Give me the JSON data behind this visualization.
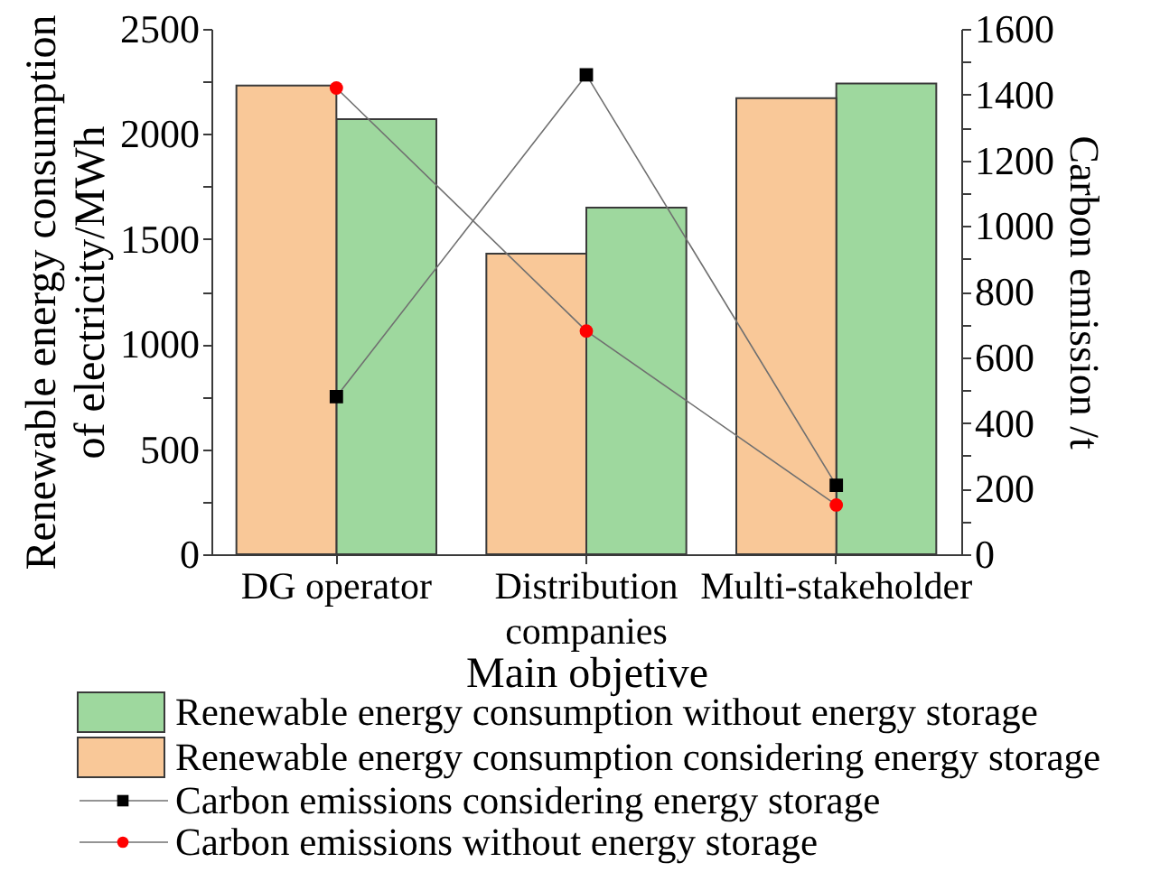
{
  "chart_data": {
    "type": "bar",
    "xlabel": "Main objetive",
    "ylabel": "Renewable energy consumption of electricity/MWh",
    "y2label": "Carbon emission /t",
    "categories": [
      "DG operator",
      "Distribution companies",
      "Multi-stakeholder"
    ],
    "series": [
      {
        "name": "Renewable energy consumption without energy storage",
        "color": "#9ed89e",
        "values": [
          2070,
          1650,
          2240
        ]
      },
      {
        "name": "Renewable energy consumption considering energy storage",
        "color": "#f9c898",
        "values": [
          2230,
          1430,
          2170
        ]
      },
      {
        "name": "Carbon emissions considering energy storage",
        "type": "line",
        "axis": "y2",
        "marker": "square",
        "color": "#000000",
        "values": [
          480,
          1460,
          210
        ]
      },
      {
        "name": "Carbon emissions without energy storage",
        "type": "line",
        "axis": "y2",
        "marker": "circle",
        "color": "#ff0000",
        "values": [
          1420,
          680,
          150
        ]
      }
    ],
    "ylim": [
      0,
      2500
    ],
    "yticks": [
      0,
      {
        "value": 250,
        "label": null
      },
      500,
      {
        "value": 750,
        "label": null
      },
      1000,
      {
        "value": 1250,
        "label": null
      },
      1500,
      {
        "value": 1750,
        "label": null
      },
      2000,
      {
        "value": 2250,
        "label": null
      },
      2500
    ],
    "y2lim": [
      0,
      1600
    ],
    "y2ticks": [
      0,
      {
        "value": 100,
        "label": null
      },
      200,
      {
        "value": 300,
        "label": null
      },
      400,
      {
        "value": 500,
        "label": null
      },
      600,
      {
        "value": 700,
        "label": null
      },
      800,
      {
        "value": 900,
        "label": null
      },
      1000,
      {
        "value": 1100,
        "label": null
      },
      1200,
      {
        "value": 1300,
        "label": null
      },
      1400,
      {
        "value": 1500,
        "label": null
      },
      1600
    ],
    "grid": false,
    "legend": "bottom"
  }
}
